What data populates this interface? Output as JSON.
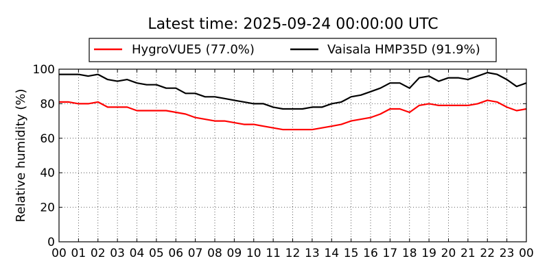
{
  "chart_data": {
    "type": "line",
    "title": "Latest time: 2025-09-24 00:00:00 UTC",
    "ylabel": "Relative humidity (%)",
    "xlabel": "",
    "ylim": [
      0,
      100
    ],
    "xlim": [
      0,
      24
    ],
    "yticks": [
      "0",
      "20",
      "40",
      "60",
      "80",
      "100"
    ],
    "xticks": [
      "00",
      "01",
      "02",
      "03",
      "04",
      "05",
      "06",
      "07",
      "08",
      "09",
      "10",
      "11",
      "12",
      "13",
      "14",
      "15",
      "16",
      "17",
      "18",
      "19",
      "20",
      "21",
      "22",
      "23",
      "00"
    ],
    "grid": true,
    "legend_position": "top-center",
    "x": [
      0,
      0.5,
      1,
      1.5,
      2,
      2.5,
      3,
      3.5,
      4,
      4.5,
      5,
      5.5,
      6,
      6.5,
      7,
      7.5,
      8,
      8.5,
      9,
      9.5,
      10,
      10.5,
      11,
      11.5,
      12,
      12.5,
      13,
      13.5,
      14,
      14.5,
      15,
      15.5,
      16,
      16.5,
      17,
      17.5,
      18,
      18.5,
      19,
      19.5,
      20,
      20.5,
      21,
      21.5,
      22,
      22.5,
      23,
      23.5,
      24
    ],
    "series": [
      {
        "name": "HygroVUE5 (77.0%)",
        "color": "#ff0000",
        "values": [
          81,
          81,
          80,
          80,
          81,
          78,
          78,
          78,
          76,
          76,
          76,
          76,
          75,
          74,
          72,
          71,
          70,
          70,
          69,
          68,
          68,
          67,
          66,
          65,
          65,
          65,
          65,
          66,
          67,
          68,
          70,
          71,
          72,
          74,
          77,
          77,
          75,
          79,
          80,
          79,
          79,
          79,
          79,
          80,
          82,
          81,
          78,
          76,
          77
        ]
      },
      {
        "name": "Vaisala HMP35D (91.9%)",
        "color": "#000000",
        "values": [
          97,
          97,
          97,
          96,
          97,
          94,
          93,
          94,
          92,
          91,
          91,
          89,
          89,
          86,
          86,
          84,
          84,
          83,
          82,
          81,
          80,
          80,
          78,
          77,
          77,
          77,
          78,
          78,
          80,
          81,
          84,
          85,
          87,
          89,
          92,
          92,
          89,
          95,
          96,
          93,
          95,
          95,
          94,
          96,
          98,
          97,
          94,
          90,
          92
        ]
      }
    ]
  }
}
